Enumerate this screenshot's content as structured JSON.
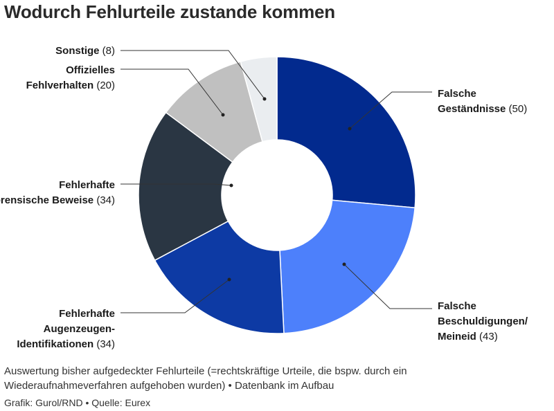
{
  "title": "Wodurch Fehlurteile zustande kommen",
  "description": "Auswertung bisher aufgedeckter Fehlurteile (=rechtskräftige Urteile, die bspw. durch ein Wiederaufnahmeverfahren aufgehoben wurden) • Datenbank im Aufbau",
  "credit": "Grafik: Gurol/RND • Quelle: Eurex",
  "chart_data": {
    "type": "pie",
    "donut": true,
    "slices": [
      {
        "label": "Falsche Geständnisse",
        "label_lines": [
          "Falsche",
          "Geständnisse"
        ],
        "value": 50,
        "value_text": "(50)",
        "color": "#022a8e"
      },
      {
        "label": "Falsche Beschuldigungen/ Meineid",
        "label_lines": [
          "Falsche",
          "Beschuldigungen/",
          "Meineid"
        ],
        "value": 43,
        "value_text": "(43)",
        "color": "#4d80fb"
      },
      {
        "label": "Fehlerhafte Augenzeugen-Identifikationen",
        "label_lines": [
          "Fehlerhafte",
          "Augenzeugen-",
          "Identifikationen"
        ],
        "value": 34,
        "value_text": "(34)",
        "color": "#0d3aa4"
      },
      {
        "label": "Fehlerhafte forensische Beweise",
        "label_lines": [
          "Fehlerhafte",
          "forensische Beweise"
        ],
        "value": 34,
        "value_text": "(34)",
        "color": "#2a3643"
      },
      {
        "label": "Offizielles Fehlverhalten",
        "label_lines": [
          "Offizielles",
          "Fehlverhalten"
        ],
        "value": 20,
        "value_text": "(20)",
        "color": "#c0c0c0"
      },
      {
        "label": "Sonstige",
        "label_lines": [
          "Sonstige"
        ],
        "value": 8,
        "value_text": "(8)",
        "color": "#eaedf0"
      }
    ]
  }
}
